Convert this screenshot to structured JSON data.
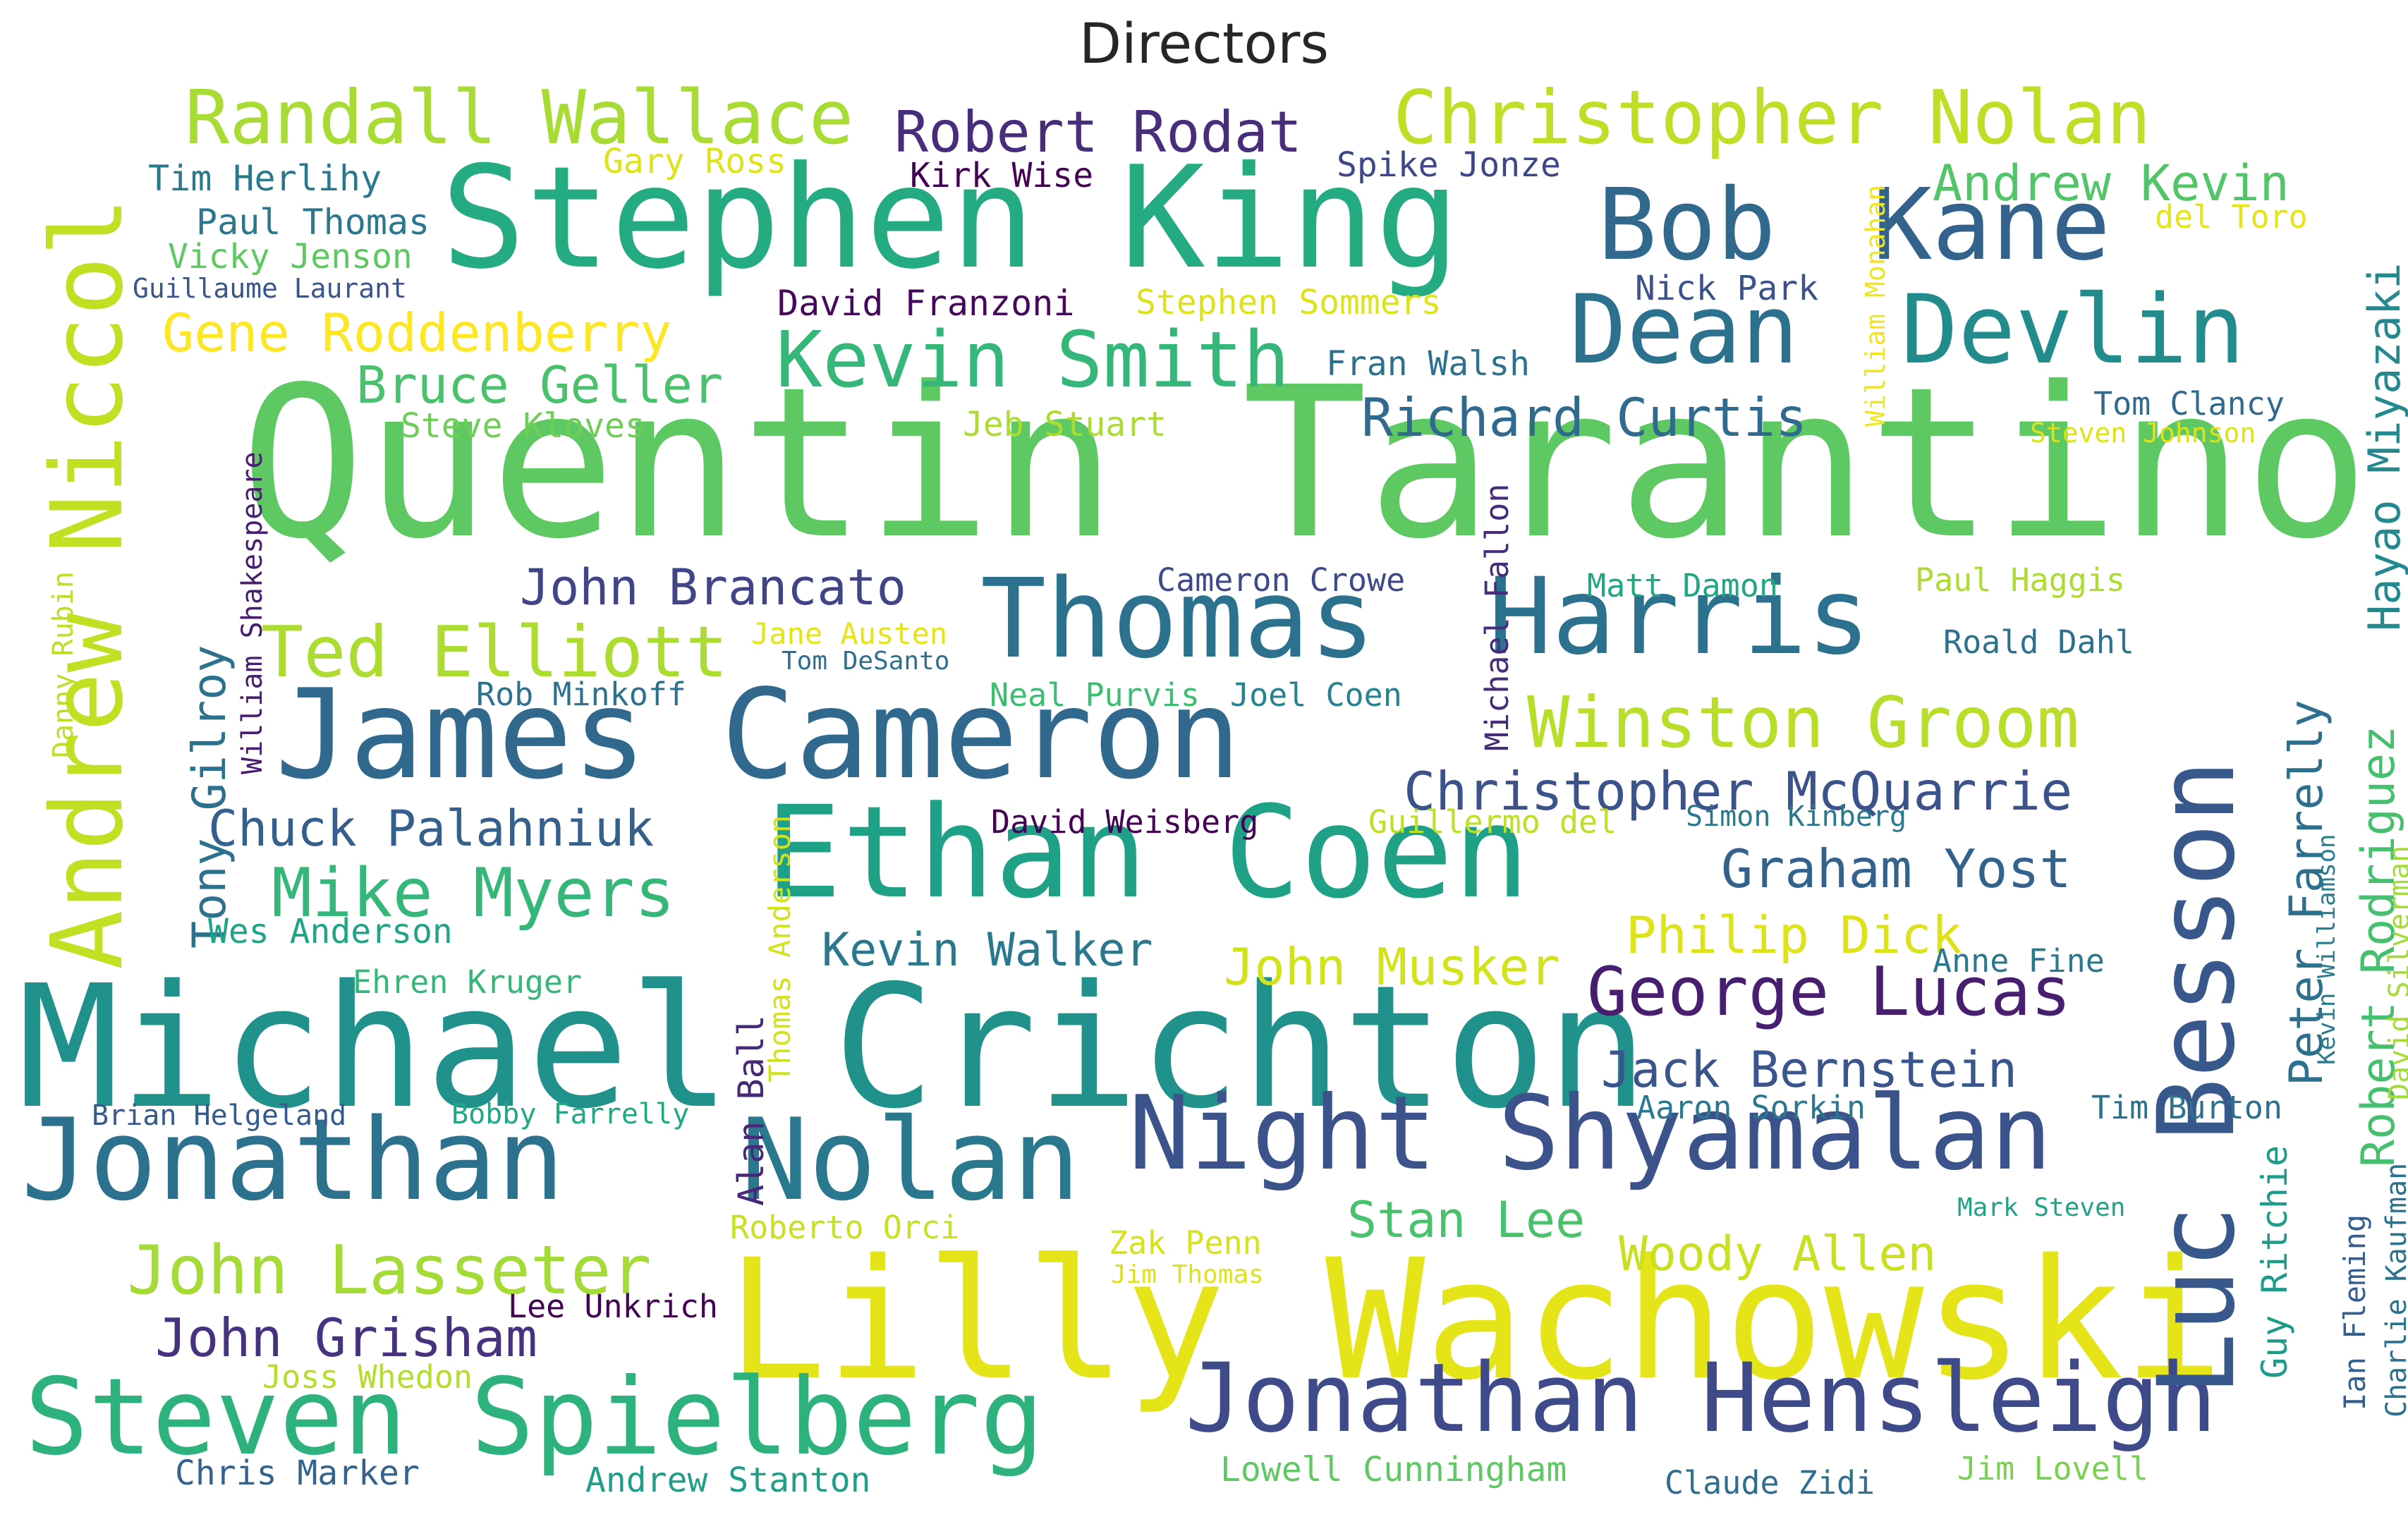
{
  "title": "Directors",
  "words": [
    {
      "text": "Quentin Tarantino",
      "color": "#5ec962"
    },
    {
      "text": "Michael Crichton",
      "color": "#21918c"
    },
    {
      "text": "Lilly Wachowski",
      "color": "#e5e419"
    },
    {
      "text": "Stephen King",
      "color": "#25ab82"
    },
    {
      "text": "Ethan Coen",
      "color": "#1fa187"
    },
    {
      "text": "James Cameron",
      "color": "#31688e"
    },
    {
      "text": "Night Shyamalan",
      "color": "#3b528b"
    },
    {
      "text": "Jonathan Hensleigh",
      "color": "#3e4a89"
    },
    {
      "text": "Jonathan",
      "color": "#2c728e"
    },
    {
      "text": "Nolan",
      "color": "#2a788e"
    },
    {
      "text": "Steven Spielberg",
      "color": "#2db27d"
    },
    {
      "text": "Thomas",
      "color": "#2c728e"
    },
    {
      "text": "Harris",
      "color": "#2c718e"
    },
    {
      "text": "Luc Besson",
      "color": "#38588c"
    },
    {
      "text": "Andrew Niccol",
      "color": "#c2df23"
    },
    {
      "text": "Bob",
      "color": "#31688e"
    },
    {
      "text": "Kane",
      "color": "#33638d"
    },
    {
      "text": "Dean",
      "color": "#2c728e"
    },
    {
      "text": "Devlin",
      "color": "#228c8d"
    },
    {
      "text": "Randall Wallace",
      "color": "#a8db34"
    },
    {
      "text": "Christopher Nolan",
      "color": "#bddf26"
    },
    {
      "text": "Kevin Smith",
      "color": "#35b779"
    },
    {
      "text": "Ted Elliott",
      "color": "#addc30"
    },
    {
      "text": "Winston Groom",
      "color": "#b8de29"
    },
    {
      "text": "Mike Myers",
      "color": "#35b779"
    },
    {
      "text": "John Lasseter",
      "color": "#a5db36"
    },
    {
      "text": "George Lucas",
      "color": "#481f70"
    },
    {
      "text": "John Grisham",
      "color": "#46327e"
    },
    {
      "text": "Robert Rodat",
      "color": "#472d7b"
    },
    {
      "text": "Richard Curtis",
      "color": "#306a8e"
    },
    {
      "text": "John Brancato",
      "color": "#414487"
    },
    {
      "text": "Christopher McQuarrie",
      "color": "#3b528b"
    },
    {
      "text": "Graham Yost",
      "color": "#33638d"
    },
    {
      "text": "Chuck Palahniuk",
      "color": "#355f8d"
    },
    {
      "text": "Bruce Geller",
      "color": "#4ac16d"
    },
    {
      "text": "Gene Roddenberry",
      "color": "#fde725"
    },
    {
      "text": "Andrew Kevin",
      "color": "#52c569"
    },
    {
      "text": "Philip Dick",
      "color": "#dde318"
    },
    {
      "text": "Jack Bernstein",
      "color": "#3a548c"
    },
    {
      "text": "Kevin Walker",
      "color": "#2a788e"
    },
    {
      "text": "John Musker",
      "color": "#d2e21b"
    },
    {
      "text": "Woody Allen",
      "color": "#c8e020"
    },
    {
      "text": "Stan Lee",
      "color": "#4ac16d"
    },
    {
      "text": "Hayao Miyazaki",
      "color": "#23898e"
    },
    {
      "text": "Robert Rodriguez",
      "color": "#46c06f"
    },
    {
      "text": "Peter Farrelly",
      "color": "#2d708e"
    },
    {
      "text": "Tony Gilroy",
      "color": "#2c728e"
    },
    {
      "text": "Alan Ball",
      "color": "#482878"
    },
    {
      "text": "Guy Ritchie",
      "color": "#1e9b8a"
    },
    {
      "text": "Tim Herlihy",
      "color": "#2a788e"
    },
    {
      "text": "Paul Thomas",
      "color": "#2a788e"
    },
    {
      "text": "Vicky Jenson",
      "color": "#5ec962"
    },
    {
      "text": "Guillaume Laurant",
      "color": "#39568c"
    },
    {
      "text": "Gary Ross",
      "color": "#dde318"
    },
    {
      "text": "Kirk Wise",
      "color": "#440154"
    },
    {
      "text": "Spike Jonze",
      "color": "#3f4788"
    },
    {
      "text": "del Toro",
      "color": "#e5e419"
    },
    {
      "text": "David Franzoni",
      "color": "#46085c"
    },
    {
      "text": "Stephen Sommers",
      "color": "#dde318"
    },
    {
      "text": "Nick Park",
      "color": "#3b528b"
    },
    {
      "text": "Fran Walsh",
      "color": "#2c728e"
    },
    {
      "text": "Steve Kloves",
      "color": "#6ece58"
    },
    {
      "text": "Jeb Stuart",
      "color": "#addc30"
    },
    {
      "text": "Tom Clancy",
      "color": "#306a8e"
    },
    {
      "text": "Steven Johnson",
      "color": "#dde318"
    },
    {
      "text": "William Monahan",
      "color": "#f1e51d"
    },
    {
      "text": "William Shakespeare",
      "color": "#481f70"
    },
    {
      "text": "Danny Rubin",
      "color": "#bddf26"
    },
    {
      "text": "Michael Fallon",
      "color": "#472c7a"
    },
    {
      "text": "Cameron Crowe",
      "color": "#3e4989"
    },
    {
      "text": "Matt Damon",
      "color": "#22a785"
    },
    {
      "text": "Paul Haggis",
      "color": "#addc30"
    },
    {
      "text": "Roald Dahl",
      "color": "#2c728e"
    },
    {
      "text": "Jane Austen",
      "color": "#e5e419"
    },
    {
      "text": "Tom DeSanto",
      "color": "#2e6e8e"
    },
    {
      "text": "Rob Minkoff",
      "color": "#2c728e"
    },
    {
      "text": "Neal Purvis",
      "color": "#3dbc74"
    },
    {
      "text": "Joel Coen",
      "color": "#26828e"
    },
    {
      "text": "Thomas Anderson",
      "color": "#d2e21b"
    },
    {
      "text": "David Weisberg",
      "color": "#440154"
    },
    {
      "text": "Guillermo del",
      "color": "#bddf26"
    },
    {
      "text": "Simon Kinberg",
      "color": "#2a788e"
    },
    {
      "text": "Wes Anderson",
      "color": "#20a386"
    },
    {
      "text": "Ehren Kruger",
      "color": "#35b779"
    },
    {
      "text": "Brian Helgeland",
      "color": "#375a8c"
    },
    {
      "text": "Bobby Farrelly",
      "color": "#22a785"
    },
    {
      "text": "Anne Fine",
      "color": "#2a788e"
    },
    {
      "text": "Aaron Sorkin",
      "color": "#2a788e"
    },
    {
      "text": "Tim Burton",
      "color": "#2c728e"
    },
    {
      "text": "Kevin Williamson",
      "color": "#287c8e"
    },
    {
      "text": "David Silverman",
      "color": "#a5db36"
    },
    {
      "text": "Charlie Kaufman",
      "color": "#2c728e"
    },
    {
      "text": "Ian Fleming",
      "color": "#355f8d"
    },
    {
      "text": "Mark Steven",
      "color": "#20a386"
    },
    {
      "text": "Roberto Orci",
      "color": "#c8e020"
    },
    {
      "text": "Zak Penn",
      "color": "#d8e219"
    },
    {
      "text": "Jim Thomas",
      "color": "#dde318"
    },
    {
      "text": "Lee Unkrich",
      "color": "#440154"
    },
    {
      "text": "Joss Whedon",
      "color": "#b5de2b"
    },
    {
      "text": "Chris Marker",
      "color": "#33638d"
    },
    {
      "text": "Andrew Stanton",
      "color": "#1f9e89"
    },
    {
      "text": "Lowell Cunningham",
      "color": "#5ec962"
    },
    {
      "text": "Claude Zidi",
      "color": "#2e6e8e"
    },
    {
      "text": "Jim Lovell",
      "color": "#7ad151"
    }
  ]
}
